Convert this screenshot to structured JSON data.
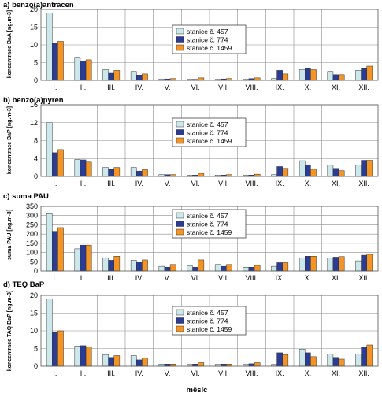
{
  "figure": {
    "x_axis_title": "měsíc",
    "categories": [
      "I.",
      "II.",
      "III.",
      "IV.",
      "V.",
      "VI.",
      "VII.",
      "VIII.",
      "IX.",
      "X.",
      "XI.",
      "XII."
    ],
    "legend": [
      "stanice č. 457",
      "stanice č. 774",
      "stanice č. 1459"
    ],
    "colors": {
      "stanice_457": "#cce8ea",
      "stanice_774": "#2a3c94",
      "stanice_1459": "#f39424"
    }
  },
  "chart_data": [
    {
      "type": "bar",
      "title": "a) benzo(a)antracen",
      "ylabel": "koncentrace BaA [ng.m-3]",
      "ylim": [
        0,
        20
      ],
      "yticks": [
        0,
        5,
        10,
        15,
        20
      ],
      "grid": true,
      "legend_position": "upper-right",
      "categories": [
        "I.",
        "II.",
        "III.",
        "IV.",
        "V.",
        "VI.",
        "VII.",
        "VIII.",
        "IX.",
        "X.",
        "XI.",
        "XII."
      ],
      "series": [
        {
          "name": "stanice č. 457",
          "values": [
            19.0,
            6.5,
            3.0,
            2.5,
            0.4,
            0.3,
            0.3,
            0.3,
            0.5,
            3.0,
            2.5,
            2.8
          ]
        },
        {
          "name": "stanice č. 774",
          "values": [
            10.5,
            5.5,
            2.0,
            1.5,
            0.4,
            0.3,
            0.4,
            0.5,
            2.8,
            3.5,
            1.6,
            3.5
          ]
        },
        {
          "name": "stanice č. 1459",
          "values": [
            11.0,
            5.8,
            2.8,
            1.8,
            0.5,
            0.7,
            0.5,
            0.7,
            1.8,
            3.0,
            1.6,
            4.0
          ]
        }
      ]
    },
    {
      "type": "bar",
      "title": "b) benzo(a)pyren",
      "ylabel": "koncentrace BaP [ng.m-3]",
      "ylim": [
        0,
        16
      ],
      "yticks": [
        0,
        4,
        8,
        12,
        16
      ],
      "grid": true,
      "legend_position": "upper-right",
      "categories": [
        "I.",
        "II.",
        "III.",
        "IV.",
        "V.",
        "VI.",
        "VII.",
        "VIII.",
        "IX.",
        "X.",
        "XI.",
        "XII."
      ],
      "series": [
        {
          "name": "stanice č. 457",
          "values": [
            12.0,
            3.8,
            2.0,
            2.0,
            0.4,
            0.3,
            0.3,
            0.3,
            0.4,
            3.5,
            2.5,
            2.5
          ]
        },
        {
          "name": "stanice č. 774",
          "values": [
            5.3,
            3.7,
            1.6,
            1.2,
            0.4,
            0.3,
            0.3,
            0.3,
            2.2,
            2.6,
            1.8,
            3.6
          ]
        },
        {
          "name": "stanice č. 1459",
          "values": [
            6.0,
            3.2,
            2.0,
            1.5,
            0.4,
            0.7,
            0.4,
            0.5,
            1.8,
            1.6,
            1.3,
            3.6
          ]
        }
      ]
    },
    {
      "type": "bar",
      "title": "c) suma PAU",
      "ylabel": "suma PAU [ng.m-3]",
      "ylim": [
        0,
        350
      ],
      "yticks": [
        0,
        50,
        100,
        150,
        200,
        250,
        300,
        350
      ],
      "grid": true,
      "legend_position": "upper-right",
      "categories": [
        "I.",
        "II.",
        "III.",
        "IV.",
        "V.",
        "VI.",
        "VII.",
        "VIII.",
        "IX.",
        "X.",
        "XI.",
        "XII."
      ],
      "series": [
        {
          "name": "stanice č. 457",
          "values": [
            310,
            120,
            70,
            58,
            25,
            27,
            35,
            20,
            25,
            70,
            70,
            55
          ]
        },
        {
          "name": "stanice č. 774",
          "values": [
            215,
            140,
            58,
            48,
            20,
            20,
            25,
            20,
            45,
            80,
            75,
            85
          ]
        },
        {
          "name": "stanice č. 1459",
          "values": [
            235,
            140,
            80,
            60,
            35,
            60,
            35,
            30,
            45,
            80,
            78,
            90
          ]
        }
      ]
    },
    {
      "type": "bar",
      "title": "d) TEQ BaP",
      "ylabel": "koncentrace TAQ BaP [ng.m-3]",
      "ylim": [
        0,
        20
      ],
      "yticks": [
        0,
        5,
        10,
        15,
        20
      ],
      "grid": true,
      "legend_position": "upper-right",
      "categories": [
        "I.",
        "II.",
        "III.",
        "IV.",
        "V.",
        "VI.",
        "VII.",
        "VIII.",
        "IX.",
        "X.",
        "XI.",
        "XII."
      ],
      "series": [
        {
          "name": "stanice č. 457",
          "values": [
            19.0,
            5.7,
            3.3,
            3.0,
            0.6,
            0.5,
            0.5,
            0.5,
            0.5,
            4.8,
            3.5,
            3.4
          ]
        },
        {
          "name": "stanice č. 774",
          "values": [
            9.5,
            5.8,
            2.5,
            1.8,
            0.6,
            0.6,
            0.6,
            0.7,
            3.8,
            3.8,
            2.5,
            5.5
          ]
        },
        {
          "name": "stanice č. 1459",
          "values": [
            10.0,
            5.4,
            3.0,
            2.4,
            0.6,
            1.0,
            0.6,
            1.0,
            3.3,
            2.7,
            2.0,
            6.0
          ]
        }
      ]
    }
  ]
}
